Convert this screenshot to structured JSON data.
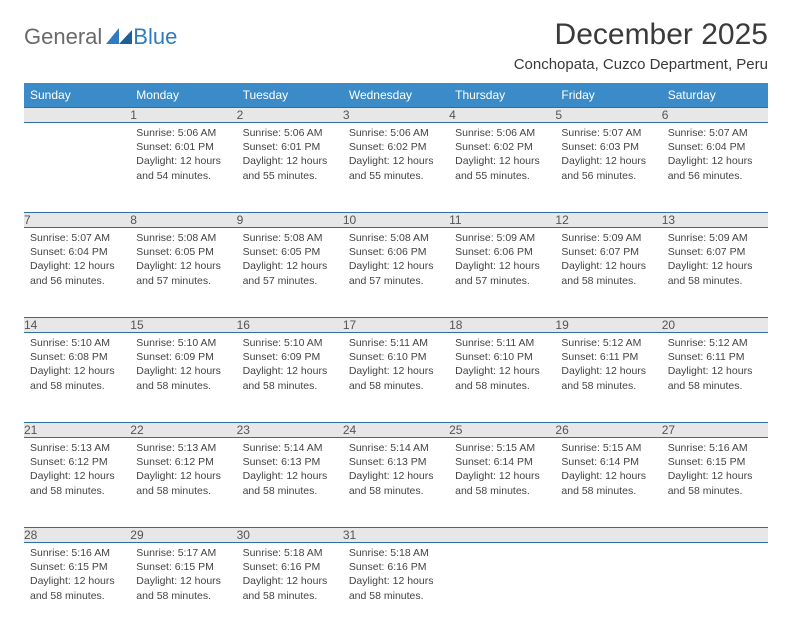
{
  "logo": {
    "general": "General",
    "blue": "Blue"
  },
  "title": "December 2025",
  "location": "Conchopata, Cuzco Department, Peru",
  "colors": {
    "header_bg": "#3b8bc8",
    "header_text": "#ffffff",
    "daynum_bg": "#e7e7e7",
    "row_border": "#2b6fa3",
    "body_text": "#444444",
    "logo_gray": "#6a6a6a",
    "logo_blue": "#2f7bbf"
  },
  "weekdays": [
    "Sunday",
    "Monday",
    "Tuesday",
    "Wednesday",
    "Thursday",
    "Friday",
    "Saturday"
  ],
  "weeks": [
    [
      null,
      {
        "n": "1",
        "sr": "5:06 AM",
        "ss": "6:01 PM",
        "dl": "12 hours and 54 minutes."
      },
      {
        "n": "2",
        "sr": "5:06 AM",
        "ss": "6:01 PM",
        "dl": "12 hours and 55 minutes."
      },
      {
        "n": "3",
        "sr": "5:06 AM",
        "ss": "6:02 PM",
        "dl": "12 hours and 55 minutes."
      },
      {
        "n": "4",
        "sr": "5:06 AM",
        "ss": "6:02 PM",
        "dl": "12 hours and 55 minutes."
      },
      {
        "n": "5",
        "sr": "5:07 AM",
        "ss": "6:03 PM",
        "dl": "12 hours and 56 minutes."
      },
      {
        "n": "6",
        "sr": "5:07 AM",
        "ss": "6:04 PM",
        "dl": "12 hours and 56 minutes."
      }
    ],
    [
      {
        "n": "7",
        "sr": "5:07 AM",
        "ss": "6:04 PM",
        "dl": "12 hours and 56 minutes."
      },
      {
        "n": "8",
        "sr": "5:08 AM",
        "ss": "6:05 PM",
        "dl": "12 hours and 57 minutes."
      },
      {
        "n": "9",
        "sr": "5:08 AM",
        "ss": "6:05 PM",
        "dl": "12 hours and 57 minutes."
      },
      {
        "n": "10",
        "sr": "5:08 AM",
        "ss": "6:06 PM",
        "dl": "12 hours and 57 minutes."
      },
      {
        "n": "11",
        "sr": "5:09 AM",
        "ss": "6:06 PM",
        "dl": "12 hours and 57 minutes."
      },
      {
        "n": "12",
        "sr": "5:09 AM",
        "ss": "6:07 PM",
        "dl": "12 hours and 58 minutes."
      },
      {
        "n": "13",
        "sr": "5:09 AM",
        "ss": "6:07 PM",
        "dl": "12 hours and 58 minutes."
      }
    ],
    [
      {
        "n": "14",
        "sr": "5:10 AM",
        "ss": "6:08 PM",
        "dl": "12 hours and 58 minutes."
      },
      {
        "n": "15",
        "sr": "5:10 AM",
        "ss": "6:09 PM",
        "dl": "12 hours and 58 minutes."
      },
      {
        "n": "16",
        "sr": "5:10 AM",
        "ss": "6:09 PM",
        "dl": "12 hours and 58 minutes."
      },
      {
        "n": "17",
        "sr": "5:11 AM",
        "ss": "6:10 PM",
        "dl": "12 hours and 58 minutes."
      },
      {
        "n": "18",
        "sr": "5:11 AM",
        "ss": "6:10 PM",
        "dl": "12 hours and 58 minutes."
      },
      {
        "n": "19",
        "sr": "5:12 AM",
        "ss": "6:11 PM",
        "dl": "12 hours and 58 minutes."
      },
      {
        "n": "20",
        "sr": "5:12 AM",
        "ss": "6:11 PM",
        "dl": "12 hours and 58 minutes."
      }
    ],
    [
      {
        "n": "21",
        "sr": "5:13 AM",
        "ss": "6:12 PM",
        "dl": "12 hours and 58 minutes."
      },
      {
        "n": "22",
        "sr": "5:13 AM",
        "ss": "6:12 PM",
        "dl": "12 hours and 58 minutes."
      },
      {
        "n": "23",
        "sr": "5:14 AM",
        "ss": "6:13 PM",
        "dl": "12 hours and 58 minutes."
      },
      {
        "n": "24",
        "sr": "5:14 AM",
        "ss": "6:13 PM",
        "dl": "12 hours and 58 minutes."
      },
      {
        "n": "25",
        "sr": "5:15 AM",
        "ss": "6:14 PM",
        "dl": "12 hours and 58 minutes."
      },
      {
        "n": "26",
        "sr": "5:15 AM",
        "ss": "6:14 PM",
        "dl": "12 hours and 58 minutes."
      },
      {
        "n": "27",
        "sr": "5:16 AM",
        "ss": "6:15 PM",
        "dl": "12 hours and 58 minutes."
      }
    ],
    [
      {
        "n": "28",
        "sr": "5:16 AM",
        "ss": "6:15 PM",
        "dl": "12 hours and 58 minutes."
      },
      {
        "n": "29",
        "sr": "5:17 AM",
        "ss": "6:15 PM",
        "dl": "12 hours and 58 minutes."
      },
      {
        "n": "30",
        "sr": "5:18 AM",
        "ss": "6:16 PM",
        "dl": "12 hours and 58 minutes."
      },
      {
        "n": "31",
        "sr": "5:18 AM",
        "ss": "6:16 PM",
        "dl": "12 hours and 58 minutes."
      },
      null,
      null,
      null
    ]
  ],
  "labels": {
    "sunrise": "Sunrise:",
    "sunset": "Sunset:",
    "daylight": "Daylight:"
  }
}
